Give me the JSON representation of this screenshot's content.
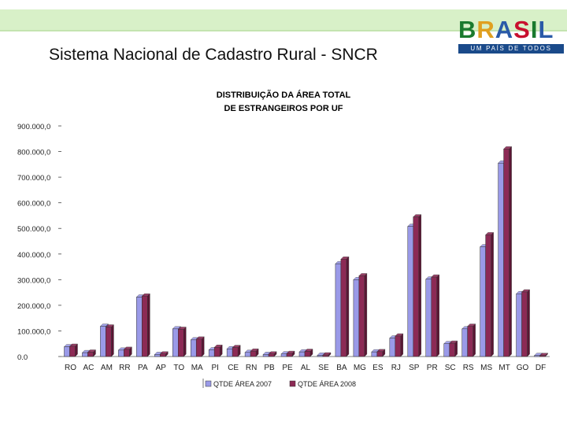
{
  "slide": {
    "title": "Sistema Nacional de Cadastro Rural - SNCR"
  },
  "logo": {
    "word_letters": [
      "B",
      "R",
      "A",
      "S",
      "I",
      "L"
    ],
    "slogan": "UM PAÍS DE TODOS",
    "colors": [
      "#1a7a2e",
      "#e0a020",
      "#2a5aa8",
      "#c8102e",
      "#1a7a2e",
      "#2a5aa8"
    ]
  },
  "colors": {
    "series_2007": "#9a9ae8",
    "series_2008": "#8c2a55",
    "band": "#d8f0c8"
  },
  "chart_data": {
    "type": "bar",
    "title": "DISTRIBUIÇÃO DA ÁREA TOTAL DE ESTRANGEIROS POR UF",
    "title_lines": [
      "DISTRIBUIÇÃO DA ÁREA TOTAL",
      "DE ESTRANGEIROS POR UF"
    ],
    "categories": [
      "RO",
      "AC",
      "AM",
      "RR",
      "PA",
      "AP",
      "TO",
      "MA",
      "PI",
      "CE",
      "RN",
      "PB",
      "PE",
      "AL",
      "SE",
      "BA",
      "MG",
      "ES",
      "RJ",
      "SP",
      "PR",
      "SC",
      "RS",
      "MS",
      "MT",
      "GO",
      "DF"
    ],
    "series": [
      {
        "name": "QTDE ÁREA 2007",
        "values": [
          38000,
          15000,
          118000,
          25000,
          232000,
          8000,
          108000,
          65000,
          26000,
          30000,
          16000,
          8000,
          10000,
          18000,
          5000,
          362000,
          300000,
          18000,
          72000,
          508000,
          302000,
          50000,
          108000,
          428000,
          755000,
          245000,
          4000
        ]
      },
      {
        "name": "QTDE ÁREA 2008",
        "values": [
          40000,
          17000,
          115000,
          28000,
          236000,
          10000,
          106000,
          68000,
          36000,
          35000,
          21000,
          10000,
          12000,
          20000,
          6000,
          380000,
          315000,
          19000,
          80000,
          545000,
          310000,
          52000,
          118000,
          475000,
          810000,
          252000,
          4000
        ]
      }
    ],
    "y_ticks": [
      "0.0",
      "100.000,0",
      "200.000,0",
      "300.000,0",
      "400.000,0",
      "500.000,0",
      "600.000,0",
      "700.000,0",
      "800.000,0",
      "900.000,0"
    ],
    "ylim": [
      0,
      900000
    ],
    "grid": false,
    "legend_position": "bottom"
  }
}
